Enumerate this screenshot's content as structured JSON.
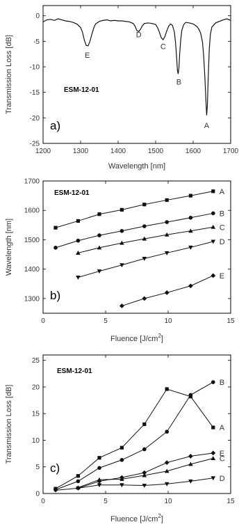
{
  "chart_data": [
    {
      "type": "line",
      "panel": "a)",
      "sample": "ESM-12-01",
      "xlabel": "Wavelength [nm]",
      "ylabel": "Transmission Loss [dB]",
      "xlim": [
        1200,
        1700
      ],
      "ylim": [
        -25,
        2
      ],
      "xticks": [
        1200,
        1300,
        1400,
        1500,
        1600,
        1700
      ],
      "yticks": [
        0,
        -5,
        -10,
        -15,
        -20,
        -25
      ],
      "x": [
        1200,
        1210,
        1220,
        1230,
        1240,
        1250,
        1260,
        1270,
        1280,
        1290,
        1300,
        1305,
        1310,
        1315,
        1320,
        1325,
        1330,
        1335,
        1340,
        1350,
        1360,
        1370,
        1380,
        1390,
        1400,
        1410,
        1420,
        1430,
        1440,
        1445,
        1450,
        1455,
        1460,
        1465,
        1470,
        1480,
        1490,
        1500,
        1505,
        1510,
        1515,
        1520,
        1525,
        1530,
        1535,
        1540,
        1545,
        1550,
        1553,
        1556,
        1558,
        1560,
        1562,
        1564,
        1567,
        1570,
        1575,
        1580,
        1590,
        1600,
        1610,
        1615,
        1620,
        1625,
        1628,
        1631,
        1634,
        1636,
        1638,
        1640,
        1643,
        1646,
        1650,
        1660,
        1670,
        1680,
        1690,
        1700
      ],
      "values": [
        -1.2,
        -0.8,
        -0.7,
        -0.9,
        -0.6,
        -0.8,
        -1.0,
        -1.1,
        -1.3,
        -1.6,
        -2.3,
        -3.2,
        -4.8,
        -5.8,
        -5.9,
        -5.0,
        -3.6,
        -2.4,
        -1.6,
        -1.1,
        -0.9,
        -0.8,
        -1.0,
        -0.9,
        -1.0,
        -1.0,
        -1.1,
        -1.2,
        -1.5,
        -2.0,
        -2.9,
        -3.1,
        -2.6,
        -1.9,
        -1.5,
        -1.4,
        -1.5,
        -1.7,
        -2.3,
        -3.2,
        -4.3,
        -4.7,
        -4.0,
        -2.9,
        -2.0,
        -1.6,
        -1.9,
        -3.2,
        -5.2,
        -8.2,
        -10.6,
        -11.4,
        -10.3,
        -7.6,
        -4.6,
        -2.8,
        -1.7,
        -1.3,
        -1.4,
        -1.6,
        -2.1,
        -2.6,
        -3.4,
        -5.2,
        -7.8,
        -11.7,
        -16.5,
        -19.5,
        -17.5,
        -12.5,
        -6.5,
        -3.6,
        -2.2,
        -1.4,
        -1.1,
        -0.8,
        -0.6,
        -0.9
      ],
      "annotations": [
        {
          "text": "E",
          "x": 1318,
          "y": -8.2
        },
        {
          "text": "D",
          "x": 1455,
          "y": -4.2
        },
        {
          "text": "C",
          "x": 1520,
          "y": -6.5
        },
        {
          "text": "B",
          "x": 1562,
          "y": -13.5
        },
        {
          "text": "A",
          "x": 1636,
          "y": -22.0
        }
      ]
    },
    {
      "type": "line",
      "panel": "b)",
      "sample": "ESM-12-01",
      "xlabel": "Fluence [J/cm",
      "xlabel_sup": "2",
      "xlabel_tail": "]",
      "ylabel": "Wavelength [nm]",
      "xlim": [
        0,
        15
      ],
      "ylim": [
        1250,
        1700
      ],
      "xticks": [
        0,
        5,
        10,
        15
      ],
      "yticks": [
        1300,
        1400,
        1500,
        1600,
        1700
      ],
      "series": [
        {
          "name": "A",
          "marker": "square",
          "x": [
            1.0,
            2.8,
            4.5,
            6.3,
            8.1,
            9.9,
            11.8,
            13.6
          ],
          "values": [
            1541,
            1564,
            1587,
            1602,
            1620,
            1635,
            1650,
            1665
          ]
        },
        {
          "name": "B",
          "marker": "circle",
          "x": [
            1.0,
            2.8,
            4.5,
            6.3,
            8.1,
            9.9,
            11.8,
            13.6
          ],
          "values": [
            1473,
            1497,
            1515,
            1530,
            1546,
            1560,
            1575,
            1590
          ]
        },
        {
          "name": "C",
          "marker": "triangle-up",
          "x": [
            2.8,
            4.5,
            6.3,
            8.1,
            9.9,
            11.8,
            13.6
          ],
          "values": [
            1455,
            1473,
            1489,
            1503,
            1517,
            1530,
            1543
          ]
        },
        {
          "name": "D",
          "marker": "triangle-down",
          "x": [
            2.8,
            4.5,
            6.3,
            8.1,
            9.9,
            11.8,
            13.6
          ],
          "values": [
            1372,
            1393,
            1414,
            1436,
            1455,
            1474,
            1494
          ]
        },
        {
          "name": "E",
          "marker": "diamond",
          "x": [
            6.3,
            8.1,
            9.9,
            11.8,
            13.6
          ],
          "values": [
            1275,
            1300,
            1320,
            1343,
            1378
          ]
        }
      ]
    },
    {
      "type": "line",
      "panel": "c)",
      "sample": "ESM-12-01",
      "xlabel": "Fluence [J/cm",
      "xlabel_sup": "2",
      "xlabel_tail": "]",
      "ylabel": "Transmission Loss [dB]",
      "xlim": [
        0,
        15
      ],
      "ylim": [
        0,
        26
      ],
      "xticks": [
        0,
        5,
        10,
        15
      ],
      "yticks": [
        0,
        5,
        10,
        15,
        20,
        25
      ],
      "series": [
        {
          "name": "A",
          "marker": "square",
          "x": [
            1.0,
            2.8,
            4.5,
            6.3,
            8.1,
            9.9,
            11.8,
            13.6
          ],
          "values": [
            0.9,
            3.3,
            6.7,
            8.6,
            13.0,
            19.6,
            18.2,
            12.4
          ]
        },
        {
          "name": "B",
          "marker": "circle",
          "x": [
            1.0,
            2.8,
            4.5,
            6.3,
            8.1,
            9.9,
            11.8,
            13.6
          ],
          "values": [
            0.7,
            2.3,
            4.8,
            6.3,
            8.3,
            11.6,
            18.5,
            20.9
          ]
        },
        {
          "name": "E",
          "marker": "diamond",
          "x": [
            2.8,
            4.5,
            6.3,
            8.1,
            9.9,
            11.8,
            13.6
          ],
          "values": [
            1.0,
            2.3,
            3.0,
            3.9,
            5.8,
            7.0,
            7.6
          ]
        },
        {
          "name": "C",
          "marker": "triangle-up",
          "x": [
            2.8,
            4.5,
            6.3,
            8.1,
            9.9,
            11.8,
            13.6
          ],
          "values": [
            1.1,
            2.6,
            2.7,
            3.4,
            4.2,
            5.5,
            6.6
          ]
        },
        {
          "name": "D",
          "marker": "triangle-down",
          "x": [
            1.0,
            2.8,
            4.5,
            6.3,
            8.1,
            9.9,
            11.8,
            13.6
          ],
          "values": [
            0.6,
            1.0,
            1.6,
            1.6,
            1.5,
            1.8,
            2.3,
            2.9
          ]
        }
      ]
    }
  ]
}
